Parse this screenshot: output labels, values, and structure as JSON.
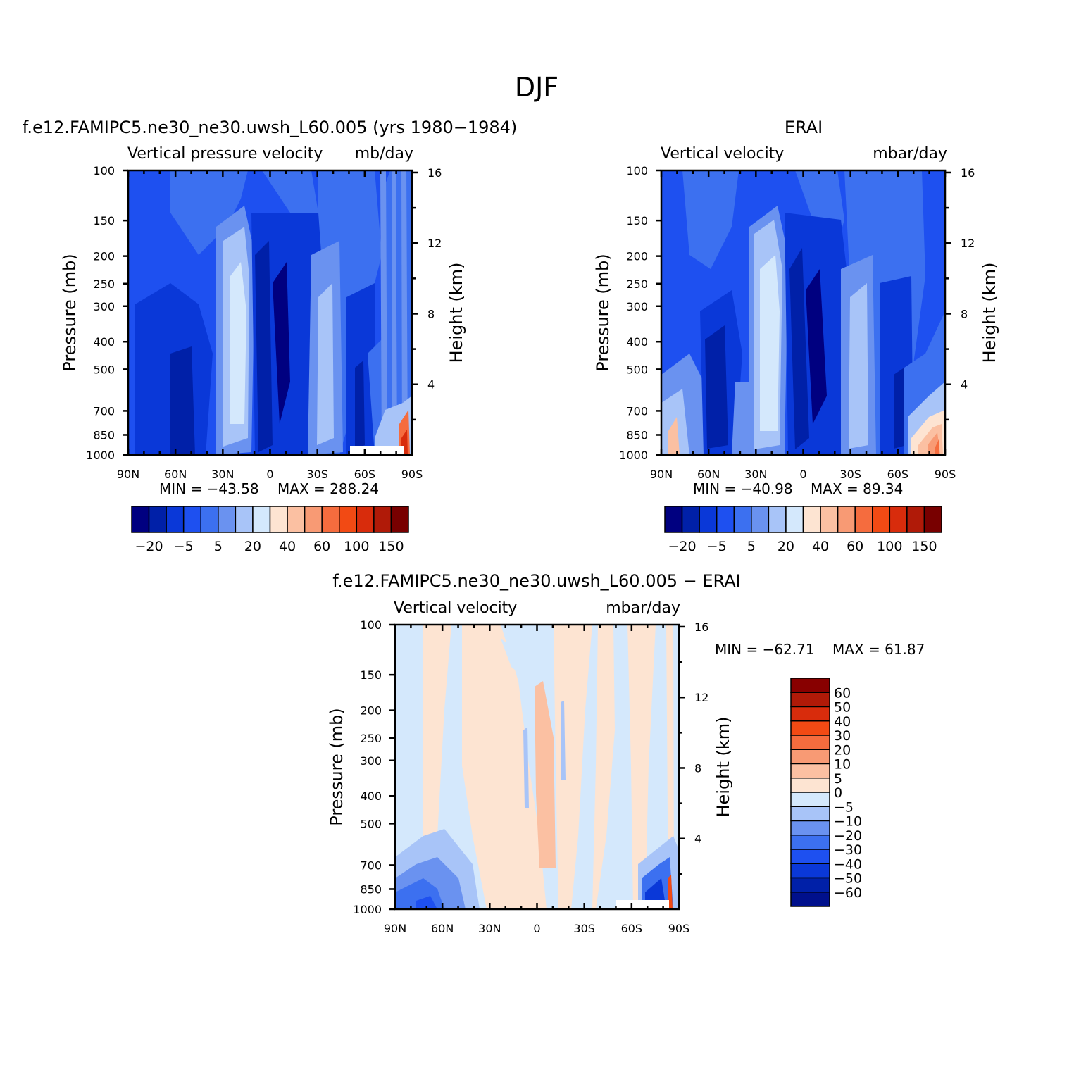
{
  "figure_title": "DJF",
  "colors": {
    "main_scale": [
      "#000080",
      "#0020a8",
      "#0a38d8",
      "#1e50f0",
      "#3c70f0",
      "#6a92f0",
      "#a8c4f8",
      "#d4e8fc",
      "#fde4d2",
      "#fbc0a2",
      "#f89a74",
      "#f56c3e",
      "#f24a14",
      "#d82c0c",
      "#b01a08",
      "#780000"
    ],
    "diff_scale": [
      "#00108c",
      "#0020a8",
      "#0a38d8",
      "#1e50f0",
      "#3c70f0",
      "#6a92f0",
      "#a8c4f8",
      "#d4e8fc",
      "#fde4d2",
      "#fbc0a2",
      "#f89a74",
      "#f56c3e",
      "#f24a14",
      "#d82c0c",
      "#b01a08",
      "#880000"
    ]
  },
  "chart_data": [
    {
      "id": "model",
      "type": "heatmap",
      "title": "f.e12.FAMIPC5.ne30_ne30.uwsh_L60.005 (yrs 1980-1984)",
      "subtitle_left": "Vertical pressure velocity",
      "subtitle_right": "mb/day",
      "xlabel": "",
      "ylabel": "Pressure (mb)",
      "y2label": "Height (km)",
      "x_ticks": [
        "90N",
        "60N",
        "30N",
        "0",
        "30S",
        "60S",
        "90S"
      ],
      "y_ticks": [
        100,
        150,
        200,
        250,
        300,
        400,
        500,
        700,
        850,
        1000
      ],
      "y2_ticks": [
        16,
        12,
        8,
        4
      ],
      "min_label": "MIN =  -43.58",
      "max_label": "MAX =  288.24",
      "colorbar_labels": [
        "-20",
        "-5",
        "5",
        "20",
        "40",
        "60",
        "100",
        "150"
      ]
    },
    {
      "id": "obs",
      "type": "heatmap",
      "title": "ERAI",
      "subtitle_left": "Vertical velocity",
      "subtitle_right": "mbar/day",
      "xlabel": "",
      "ylabel": "Pressure (mb)",
      "y2label": "Height (km)",
      "x_ticks": [
        "90N",
        "60N",
        "30N",
        "0",
        "30S",
        "60S",
        "90S"
      ],
      "y_ticks": [
        100,
        150,
        200,
        250,
        300,
        400,
        500,
        700,
        850,
        1000
      ],
      "y2_ticks": [
        16,
        12,
        8,
        4
      ],
      "min_label": "MIN =  -40.98",
      "max_label": "MAX =   89.34",
      "colorbar_labels": [
        "-20",
        "-5",
        "5",
        "20",
        "40",
        "60",
        "100",
        "150"
      ]
    },
    {
      "id": "diff",
      "type": "heatmap",
      "title": "f.e12.FAMIPC5.ne30_ne30.uwsh_L60.005 - ERAI",
      "subtitle_left": "Vertical velocity",
      "subtitle_right": "mbar/day",
      "xlabel": "",
      "ylabel": "Pressure (mb)",
      "y2label": "Height (km)",
      "x_ticks": [
        "90N",
        "60N",
        "30N",
        "0",
        "30S",
        "60S",
        "90S"
      ],
      "y_ticks": [
        100,
        150,
        200,
        250,
        300,
        400,
        500,
        700,
        850,
        1000
      ],
      "y2_ticks": [
        16,
        12,
        8,
        4
      ],
      "min_label": "MIN =  -62.71",
      "max_label": "MAX =   61.87",
      "colorbar_labels": [
        "60",
        "50",
        "40",
        "30",
        "20",
        "10",
        "5",
        "0",
        "-5",
        "-10",
        "-20",
        "-30",
        "-40",
        "-50",
        "-60"
      ]
    }
  ]
}
